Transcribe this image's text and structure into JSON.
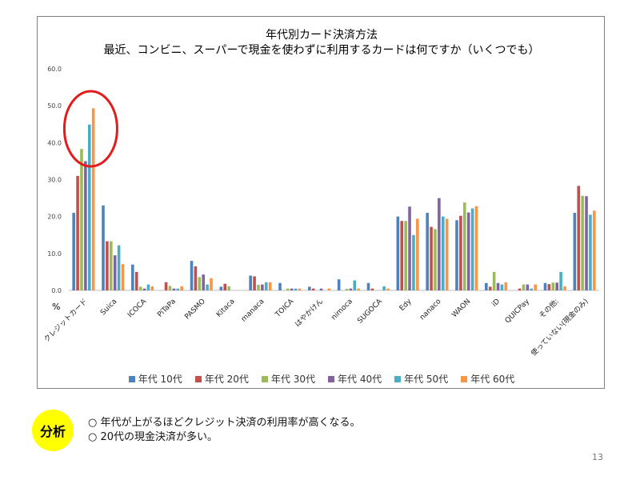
{
  "chart_data": {
    "type": "bar",
    "title": "年代別カード決済方法",
    "subtitle": "最近、コンビニ、スーパーで現金を使わずに利用するカードは何ですか（いくつでも）",
    "ylabel": "%",
    "ylim": [
      0,
      60
    ],
    "yticks": [
      "60.0",
      "50.0",
      "40.0",
      "30.0",
      "20.0",
      "10.0",
      "0.0"
    ],
    "grid": false,
    "legend_position": "bottom",
    "categories": [
      "クレジットカード",
      "Suica",
      "ICOCA",
      "PiTaPa",
      "PASMO",
      "Kitaca",
      "manaca",
      "TOICA",
      "はやかけん",
      "nimoca",
      "SUGOCA",
      "Edy",
      "nanaco",
      "WAON",
      "iD",
      "QUICPay",
      "その他:",
      "使っていない(現金のみ)"
    ],
    "series": [
      {
        "name": "年代 10代",
        "color": "#4f81bd",
        "values": [
          21.0,
          23.0,
          7.0,
          0.0,
          8.0,
          1.0,
          4.0,
          2.0,
          1.0,
          3.0,
          2.0,
          20.0,
          21.0,
          19.0,
          2.0,
          0.0,
          2.0,
          21.0
        ]
      },
      {
        "name": "年代 20代",
        "color": "#c0504d",
        "values": [
          31.0,
          13.3,
          5.0,
          2.2,
          6.5,
          1.8,
          3.8,
          0.0,
          0.5,
          0.0,
          0.5,
          18.8,
          17.2,
          20.2,
          1.0,
          0.5,
          1.7,
          28.3
        ]
      },
      {
        "name": "年代 30代",
        "color": "#9bbb59",
        "values": [
          38.3,
          13.3,
          1.0,
          1.2,
          3.6,
          1.1,
          1.5,
          0.5,
          0.0,
          0.4,
          0.0,
          18.8,
          16.6,
          23.8,
          5.0,
          1.6,
          2.1,
          25.6
        ]
      },
      {
        "name": "年代 40代",
        "color": "#8064a2",
        "values": [
          35.0,
          9.5,
          0.5,
          0.5,
          4.3,
          0.0,
          1.6,
          0.5,
          0.5,
          0.5,
          0.0,
          22.7,
          25.0,
          21.1,
          2.0,
          1.6,
          2.1,
          25.5
        ]
      },
      {
        "name": "年代 50代",
        "color": "#4bacc6",
        "values": [
          44.9,
          12.2,
          1.6,
          0.5,
          1.6,
          0.0,
          2.2,
          0.5,
          0.0,
          2.7,
          1.1,
          15.0,
          20.0,
          22.2,
          1.6,
          0.5,
          5.0,
          20.5
        ]
      },
      {
        "name": "年代 60代",
        "color": "#f79646",
        "values": [
          49.3,
          7.1,
          1.1,
          1.1,
          3.3,
          0.0,
          2.2,
          0.5,
          0.5,
          0.5,
          0.5,
          19.4,
          19.4,
          22.8,
          2.2,
          1.6,
          1.1,
          21.6
        ]
      }
    ],
    "annotation": {
      "shape": "ellipse",
      "color": "#e21b1b",
      "highlights": "クレジットカード"
    }
  },
  "analysis": {
    "badge": "分析",
    "notes": [
      "○ 年代が上がるほどクレジット決済の利用率が高くなる。",
      "○ 20代の現金決済が多い。"
    ]
  },
  "page_number": "13"
}
